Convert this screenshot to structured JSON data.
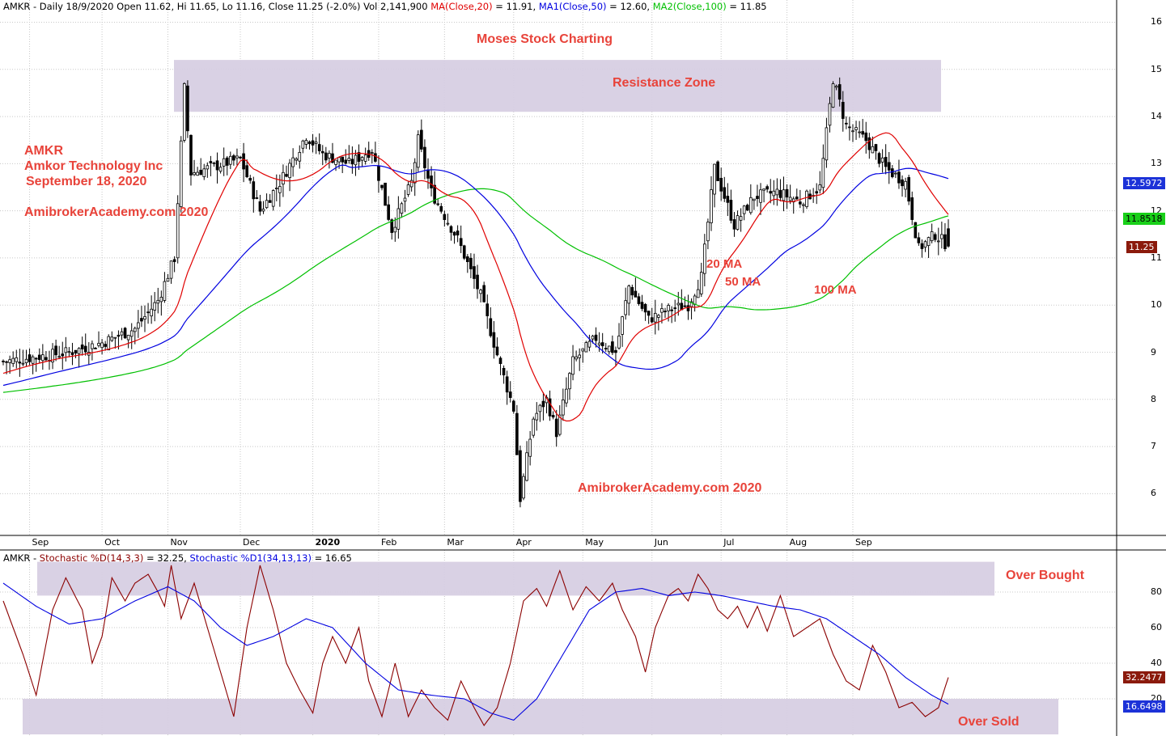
{
  "header": {
    "symbol_info": "AMKR - Daily 18/9/2020 Open 11.62, Hi 11.65, Lo 11.16, Close 11.25 (-2.0%) Vol 2,141,900 ",
    "ma20_label": "MA(Close,20)",
    "ma20_value": " = 11.91, ",
    "ma50_label": "MA1(Close,50)",
    "ma50_value": " = 12.60, ",
    "ma100_label": "MA2(Close,100)",
    "ma100_value": " = 11.85"
  },
  "sub_header": {
    "prefix": "AMKR - ",
    "stoch_fast_label": "Stochastic %D(14,3,3)",
    "stoch_fast_value": " = 32.25, ",
    "stoch_slow_label": "Stochastic %D1(34,13,13)",
    "stoch_slow_value": " = 16.65"
  },
  "annotations": {
    "title": "Moses Stock Charting",
    "resistance": "Resistance Zone",
    "ticker": "AMKR",
    "company": "Amkor Technology Inc",
    "date": "September 18, 2020",
    "site1": "AmibrokerAcademy.com  2020",
    "site2": "AmibrokerAcademy.com  2020",
    "ma20": "20 MA",
    "ma50": "50 MA",
    "ma100": "100 MA",
    "over_bought": "Over Bought",
    "over_sold": "Over Sold"
  },
  "value_tags": {
    "ma50": "12.5972",
    "ma100": "11.8518",
    "close": "11.25",
    "stoch_fast": "32.2477",
    "stoch_slow": "16.6498"
  },
  "colors": {
    "ma20": "#e00000",
    "ma50": "#0000e0",
    "ma100": "#00c000",
    "stoch_fast": "#8b0000",
    "stoch_slow": "#0000e0",
    "zone": "#d7cfe3",
    "annotation": "#e8433a",
    "candle": "#000000"
  },
  "chart_data": [
    {
      "type": "candlestick",
      "title": "AMKR - Daily",
      "ylim": [
        5.2,
        16.3
      ],
      "y_ticks": [
        6,
        7,
        8,
        9,
        10,
        11,
        12,
        13,
        14,
        15,
        16
      ],
      "x_ticks": [
        "Sep",
        "Oct",
        "Nov",
        "Dec",
        "2020",
        "Feb",
        "Mar",
        "Apr",
        "May",
        "Jun",
        "Jul",
        "Aug",
        "Sep"
      ],
      "grid": true,
      "last_bar": {
        "open": 11.62,
        "high": 11.65,
        "low": 11.16,
        "close": 11.25,
        "change_pct": -2.0,
        "volume": 2141900
      },
      "price_anchors": [
        [
          0,
          8.8
        ],
        [
          10,
          8.9
        ],
        [
          20,
          9.0
        ],
        [
          30,
          9.2
        ],
        [
          40,
          9.5
        ],
        [
          47,
          10.1
        ],
        [
          52,
          11.0
        ],
        [
          55,
          14.6
        ],
        [
          57,
          12.8
        ],
        [
          62,
          12.9
        ],
        [
          72,
          13.1
        ],
        [
          78,
          12.0
        ],
        [
          84,
          12.6
        ],
        [
          92,
          13.6
        ],
        [
          97,
          13.2
        ],
        [
          105,
          13.0
        ],
        [
          112,
          13.3
        ],
        [
          118,
          11.6
        ],
        [
          124,
          12.6
        ],
        [
          126,
          13.5
        ],
        [
          130,
          12.4
        ],
        [
          138,
          11.4
        ],
        [
          145,
          10.2
        ],
        [
          151,
          8.7
        ],
        [
          155,
          7.8
        ],
        [
          157,
          5.9
        ],
        [
          161,
          7.6
        ],
        [
          165,
          8.0
        ],
        [
          168,
          7.3
        ],
        [
          173,
          8.8
        ],
        [
          180,
          9.3
        ],
        [
          186,
          9.0
        ],
        [
          190,
          10.4
        ],
        [
          196,
          9.7
        ],
        [
          202,
          9.9
        ],
        [
          208,
          10.0
        ],
        [
          212,
          10.6
        ],
        [
          216,
          12.9
        ],
        [
          222,
          11.7
        ],
        [
          228,
          12.3
        ],
        [
          235,
          12.4
        ],
        [
          242,
          12.2
        ],
        [
          248,
          12.5
        ],
        [
          252,
          14.8
        ],
        [
          256,
          13.8
        ],
        [
          262,
          13.5
        ],
        [
          268,
          12.9
        ],
        [
          274,
          12.6
        ],
        [
          278,
          11.2
        ],
        [
          283,
          11.5
        ],
        [
          287,
          11.25
        ]
      ],
      "series": [
        {
          "name": "MA(Close,20)",
          "last": 11.91
        },
        {
          "name": "MA1(Close,50)",
          "last": 12.6
        },
        {
          "name": "MA2(Close,100)",
          "last": 11.85
        }
      ]
    },
    {
      "type": "line",
      "title": "Stochastic",
      "ylim": [
        0,
        100
      ],
      "y_ticks": [
        20,
        40,
        60,
        80
      ],
      "zones": [
        {
          "name": "Over Bought",
          "range": [
            78,
            97
          ]
        },
        {
          "name": "Over Sold",
          "range": [
            0,
            20
          ]
        }
      ],
      "series": [
        {
          "name": "Stochastic %D(14,3,3)",
          "last": 32.25,
          "anchors": [
            [
              0,
              75
            ],
            [
              6,
              45
            ],
            [
              10,
              22
            ],
            [
              15,
              70
            ],
            [
              19,
              88
            ],
            [
              24,
              70
            ],
            [
              27,
              40
            ],
            [
              30,
              55
            ],
            [
              33,
              88
            ],
            [
              37,
              75
            ],
            [
              40,
              85
            ],
            [
              44,
              90
            ],
            [
              47,
              80
            ],
            [
              49,
              72
            ],
            [
              51,
              95
            ],
            [
              54,
              65
            ],
            [
              58,
              85
            ],
            [
              62,
              60
            ],
            [
              66,
              35
            ],
            [
              70,
              10
            ],
            [
              74,
              60
            ],
            [
              78,
              95
            ],
            [
              82,
              70
            ],
            [
              86,
              40
            ],
            [
              90,
              25
            ],
            [
              94,
              12
            ],
            [
              97,
              40
            ],
            [
              100,
              55
            ],
            [
              104,
              40
            ],
            [
              108,
              60
            ],
            [
              111,
              30
            ],
            [
              115,
              10
            ],
            [
              119,
              40
            ],
            [
              123,
              10
            ],
            [
              127,
              25
            ],
            [
              131,
              15
            ],
            [
              135,
              8
            ],
            [
              139,
              30
            ],
            [
              143,
              15
            ],
            [
              146,
              5
            ],
            [
              150,
              15
            ],
            [
              154,
              40
            ],
            [
              158,
              75
            ],
            [
              162,
              82
            ],
            [
              165,
              72
            ],
            [
              169,
              92
            ],
            [
              173,
              70
            ],
            [
              177,
              83
            ],
            [
              181,
              75
            ],
            [
              185,
              85
            ],
            [
              188,
              70
            ],
            [
              192,
              55
            ],
            [
              195,
              35
            ],
            [
              198,
              60
            ],
            [
              202,
              78
            ],
            [
              205,
              82
            ],
            [
              208,
              75
            ],
            [
              211,
              90
            ],
            [
              214,
              82
            ],
            [
              217,
              70
            ],
            [
              220,
              65
            ],
            [
              223,
              72
            ],
            [
              226,
              60
            ],
            [
              229,
              72
            ],
            [
              232,
              58
            ],
            [
              236,
              78
            ],
            [
              240,
              55
            ],
            [
              244,
              60
            ],
            [
              248,
              65
            ],
            [
              252,
              45
            ],
            [
              256,
              30
            ],
            [
              260,
              25
            ],
            [
              264,
              50
            ],
            [
              268,
              35
            ],
            [
              272,
              15
            ],
            [
              276,
              18
            ],
            [
              280,
              10
            ],
            [
              284,
              15
            ],
            [
              287,
              32
            ]
          ]
        },
        {
          "name": "Stochastic %D1(34,13,13)",
          "last": 16.65,
          "anchors": [
            [
              0,
              85
            ],
            [
              10,
              72
            ],
            [
              20,
              62
            ],
            [
              30,
              65
            ],
            [
              40,
              75
            ],
            [
              50,
              83
            ],
            [
              58,
              75
            ],
            [
              66,
              60
            ],
            [
              74,
              50
            ],
            [
              82,
              55
            ],
            [
              92,
              65
            ],
            [
              100,
              60
            ],
            [
              110,
              40
            ],
            [
              120,
              25
            ],
            [
              130,
              22
            ],
            [
              140,
              20
            ],
            [
              148,
              12
            ],
            [
              155,
              8
            ],
            [
              162,
              20
            ],
            [
              170,
              45
            ],
            [
              178,
              70
            ],
            [
              186,
              80
            ],
            [
              194,
              82
            ],
            [
              202,
              78
            ],
            [
              210,
              80
            ],
            [
              218,
              78
            ],
            [
              226,
              75
            ],
            [
              234,
              72
            ],
            [
              242,
              70
            ],
            [
              250,
              65
            ],
            [
              258,
              55
            ],
            [
              266,
              45
            ],
            [
              274,
              32
            ],
            [
              282,
              22
            ],
            [
              287,
              17
            ]
          ]
        }
      ]
    }
  ]
}
